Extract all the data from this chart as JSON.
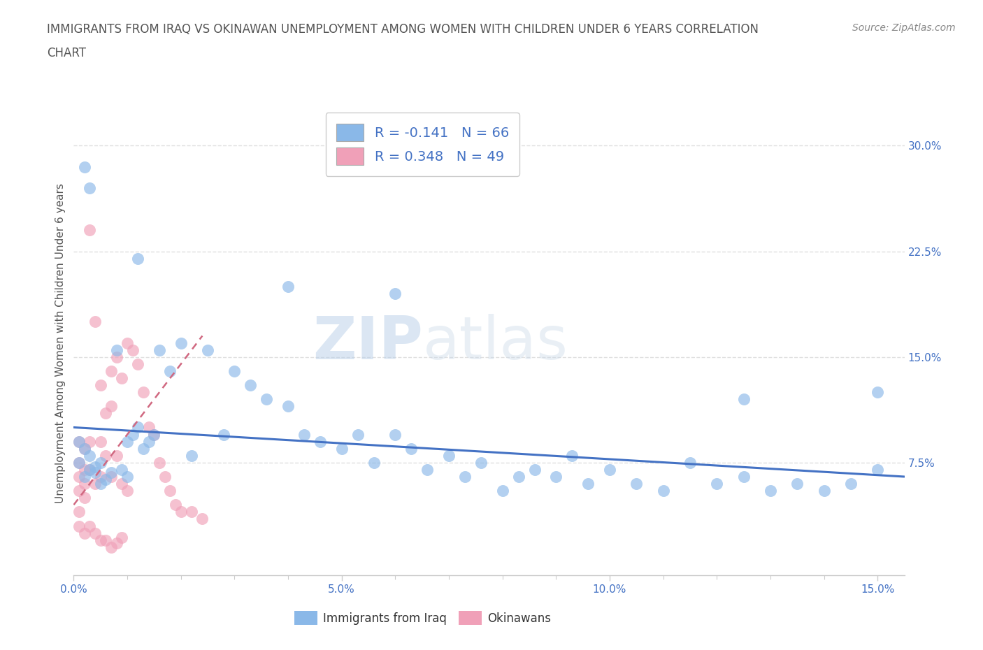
{
  "title_line1": "IMMIGRANTS FROM IRAQ VS OKINAWAN UNEMPLOYMENT AMONG WOMEN WITH CHILDREN UNDER 6 YEARS CORRELATION",
  "title_line2": "CHART",
  "source_text": "Source: ZipAtlas.com",
  "ylabel": "Unemployment Among Women with Children Under 6 years",
  "x_tick_labels": [
    "0.0%",
    "5.0%",
    "10.0%",
    "15.0%"
  ],
  "y_tick_labels": [
    "7.5%",
    "15.0%",
    "22.5%",
    "30.0%"
  ],
  "xlim": [
    0.0,
    0.155
  ],
  "ylim": [
    -0.005,
    0.325
  ],
  "legend_R_N_blue": "R = -0.141   N = 66",
  "legend_R_N_pink": "R = 0.348   N = 49",
  "blue_scatter_x": [
    0.001,
    0.001,
    0.002,
    0.002,
    0.003,
    0.003,
    0.004,
    0.004,
    0.005,
    0.005,
    0.006,
    0.007,
    0.008,
    0.009,
    0.01,
    0.01,
    0.011,
    0.012,
    0.013,
    0.014,
    0.015,
    0.016,
    0.018,
    0.02,
    0.022,
    0.025,
    0.028,
    0.03,
    0.033,
    0.036,
    0.04,
    0.043,
    0.046,
    0.05,
    0.053,
    0.056,
    0.06,
    0.063,
    0.066,
    0.07,
    0.073,
    0.076,
    0.08,
    0.083,
    0.086,
    0.09,
    0.093,
    0.096,
    0.1,
    0.105,
    0.11,
    0.115,
    0.12,
    0.125,
    0.13,
    0.135,
    0.14,
    0.145,
    0.15,
    0.002,
    0.003,
    0.012,
    0.04,
    0.06,
    0.125,
    0.15
  ],
  "blue_scatter_y": [
    0.09,
    0.075,
    0.085,
    0.065,
    0.08,
    0.07,
    0.072,
    0.068,
    0.075,
    0.06,
    0.063,
    0.068,
    0.155,
    0.07,
    0.09,
    0.065,
    0.095,
    0.1,
    0.085,
    0.09,
    0.095,
    0.155,
    0.14,
    0.16,
    0.08,
    0.155,
    0.095,
    0.14,
    0.13,
    0.12,
    0.115,
    0.095,
    0.09,
    0.085,
    0.095,
    0.075,
    0.095,
    0.085,
    0.07,
    0.08,
    0.065,
    0.075,
    0.055,
    0.065,
    0.07,
    0.065,
    0.08,
    0.06,
    0.07,
    0.06,
    0.055,
    0.075,
    0.06,
    0.065,
    0.055,
    0.06,
    0.055,
    0.06,
    0.07,
    0.285,
    0.27,
    0.22,
    0.2,
    0.195,
    0.12,
    0.125
  ],
  "pink_scatter_x": [
    0.001,
    0.001,
    0.001,
    0.001,
    0.002,
    0.002,
    0.002,
    0.002,
    0.003,
    0.003,
    0.003,
    0.004,
    0.004,
    0.005,
    0.005,
    0.005,
    0.006,
    0.006,
    0.007,
    0.007,
    0.007,
    0.008,
    0.008,
    0.009,
    0.009,
    0.01,
    0.01,
    0.011,
    0.012,
    0.013,
    0.014,
    0.015,
    0.016,
    0.017,
    0.018,
    0.019,
    0.02,
    0.022,
    0.024,
    0.001,
    0.001,
    0.002,
    0.003,
    0.004,
    0.005,
    0.006,
    0.007,
    0.008,
    0.009
  ],
  "pink_scatter_y": [
    0.09,
    0.075,
    0.065,
    0.055,
    0.085,
    0.07,
    0.06,
    0.05,
    0.24,
    0.09,
    0.07,
    0.175,
    0.06,
    0.13,
    0.09,
    0.065,
    0.11,
    0.08,
    0.14,
    0.115,
    0.065,
    0.15,
    0.08,
    0.135,
    0.06,
    0.16,
    0.055,
    0.155,
    0.145,
    0.125,
    0.1,
    0.095,
    0.075,
    0.065,
    0.055,
    0.045,
    0.04,
    0.04,
    0.035,
    0.04,
    0.03,
    0.025,
    0.03,
    0.025,
    0.02,
    0.02,
    0.015,
    0.018,
    0.022
  ],
  "blue_line_x": [
    0.0,
    0.155
  ],
  "blue_line_y": [
    0.1,
    0.065
  ],
  "pink_line_x": [
    0.0,
    0.024
  ],
  "pink_line_y": [
    0.045,
    0.165
  ],
  "watermark_zip": "ZIP",
  "watermark_atlas": "atlas",
  "background_color": "#ffffff",
  "grid_color": "#e0e0e0",
  "blue_scatter_color": "#8ab8e8",
  "pink_scatter_color": "#f0a0b8",
  "blue_line_color": "#4472c4",
  "pink_line_color": "#d06880",
  "title_color": "#555555",
  "tick_color": "#4472c4",
  "source_color": "#888888",
  "ylabel_color": "#555555",
  "bottom_legend_label_color": "#333333"
}
